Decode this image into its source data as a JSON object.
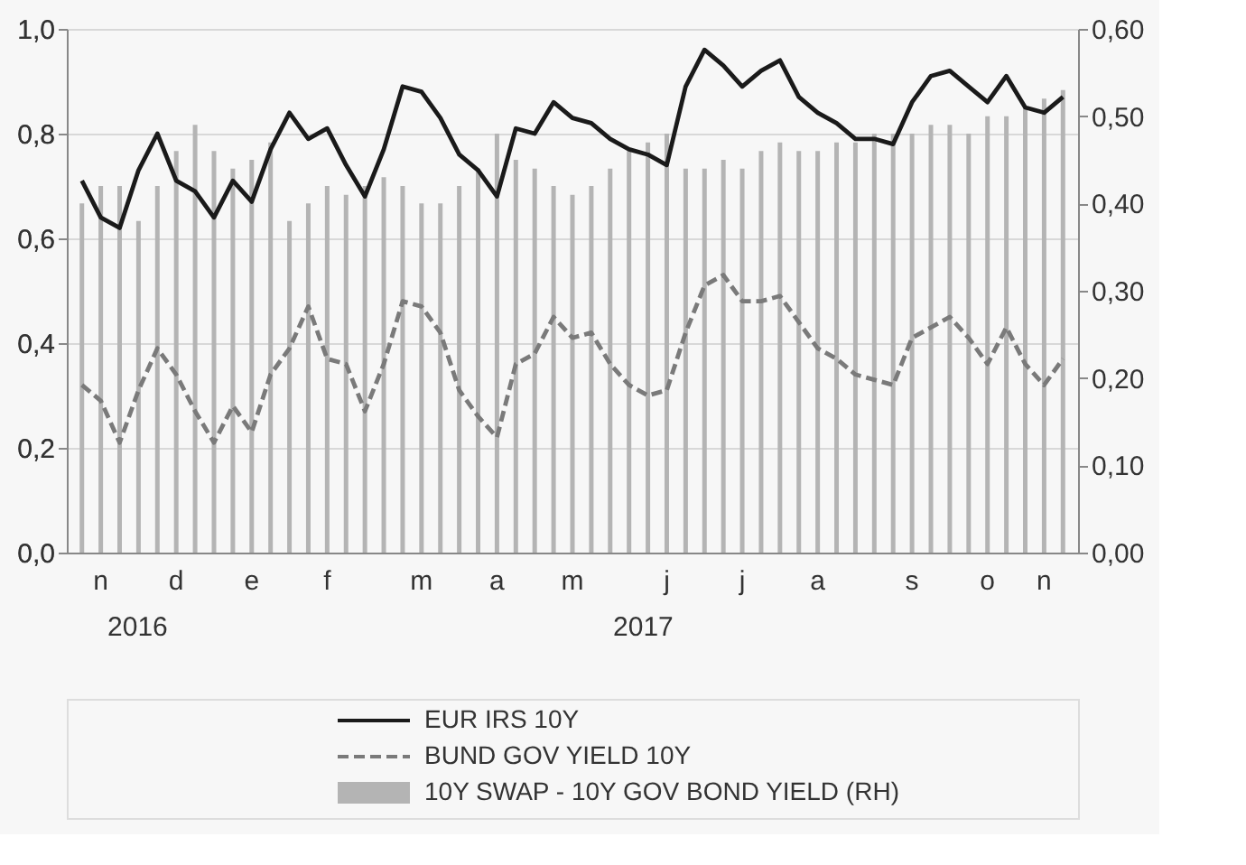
{
  "chart_data": {
    "type": "line",
    "grid": "y",
    "legend": "bottom",
    "categories": [
      null,
      "n",
      null,
      null,
      null,
      "d",
      null,
      null,
      null,
      "e",
      null,
      null,
      null,
      "f",
      null,
      null,
      null,
      null,
      "m",
      null,
      null,
      null,
      "a",
      null,
      null,
      null,
      "m",
      null,
      null,
      null,
      null,
      "j",
      null,
      null,
      null,
      "j",
      null,
      null,
      null,
      "a",
      null,
      null,
      null,
      null,
      "s",
      null,
      null,
      null,
      "o",
      null,
      null,
      "n",
      null
    ],
    "series": [
      {
        "name": "10Y SWAP - 10Y GOV BOND YIELD (RH)",
        "type": "bar",
        "axis": "y2",
        "color": "#b4b4b4",
        "values": [
          0.4,
          0.42,
          0.42,
          0.38,
          0.42,
          0.46,
          0.49,
          0.46,
          0.44,
          0.45,
          0.47,
          0.38,
          0.4,
          0.42,
          0.41,
          0.42,
          0.43,
          0.42,
          0.4,
          0.4,
          0.42,
          0.44,
          0.48,
          0.45,
          0.44,
          0.42,
          0.41,
          0.42,
          0.44,
          0.46,
          0.47,
          0.48,
          0.44,
          0.44,
          0.45,
          0.44,
          0.46,
          0.47,
          0.46,
          0.46,
          0.47,
          0.47,
          0.48,
          0.48,
          0.48,
          0.49,
          0.49,
          0.48,
          0.5,
          0.5,
          0.51,
          0.52,
          0.53
        ]
      },
      {
        "name": "EUR IRS 10Y",
        "line_style": "solid",
        "color": "#1a1a1a",
        "values": [
          0.71,
          0.64,
          0.62,
          0.73,
          0.8,
          0.71,
          0.69,
          0.64,
          0.71,
          0.67,
          0.77,
          0.84,
          0.79,
          0.81,
          0.74,
          0.68,
          0.77,
          0.89,
          0.88,
          0.83,
          0.76,
          0.73,
          0.68,
          0.81,
          0.8,
          0.86,
          0.83,
          0.82,
          0.79,
          0.77,
          0.76,
          0.74,
          0.89,
          0.96,
          0.93,
          0.89,
          0.92,
          0.94,
          0.87,
          0.84,
          0.82,
          0.79,
          0.79,
          0.78,
          0.86,
          0.91,
          0.92,
          0.89,
          0.86,
          0.91,
          0.85,
          0.84,
          0.87
        ]
      },
      {
        "name": "BUND GOV YIELD 10Y",
        "line_style": "dashed",
        "color": "#7a7a7a",
        "values": [
          0.32,
          0.29,
          0.21,
          0.31,
          0.39,
          0.34,
          0.27,
          0.21,
          0.28,
          0.23,
          0.34,
          0.39,
          0.47,
          0.37,
          0.36,
          0.27,
          0.36,
          0.48,
          0.47,
          0.42,
          0.31,
          0.26,
          0.22,
          0.36,
          0.38,
          0.45,
          0.41,
          0.42,
          0.36,
          0.32,
          0.3,
          0.31,
          0.42,
          0.51,
          0.53,
          0.48,
          0.48,
          0.49,
          0.44,
          0.39,
          0.37,
          0.34,
          0.33,
          0.32,
          0.41,
          0.43,
          0.45,
          0.41,
          0.36,
          0.43,
          0.36,
          0.32,
          0.37
        ]
      }
    ],
    "ylim": [
      0,
      1
    ],
    "yticks": [
      {
        "value": 0,
        "label": "0,0"
      },
      {
        "value": 0.2,
        "label": "0,2"
      },
      {
        "value": 0.4,
        "label": "0,4"
      },
      {
        "value": 0.6,
        "label": "0,6"
      },
      {
        "value": 0.8,
        "label": "0,8"
      },
      {
        "value": 1,
        "label": "1,0"
      }
    ],
    "y2lim": [
      0,
      0.6
    ],
    "y2ticks": [
      {
        "value": 0,
        "label": "0,00"
      },
      {
        "value": 0.1,
        "label": "0,10"
      },
      {
        "value": 0.2,
        "label": "0,20"
      },
      {
        "value": 0.3,
        "label": "0,30"
      },
      {
        "value": 0.4,
        "label": "0,40"
      },
      {
        "value": 0.5,
        "label": "0,50"
      },
      {
        "value": 0.6,
        "label": "0,60"
      }
    ],
    "annotations": [
      "2016",
      "2017"
    ]
  }
}
